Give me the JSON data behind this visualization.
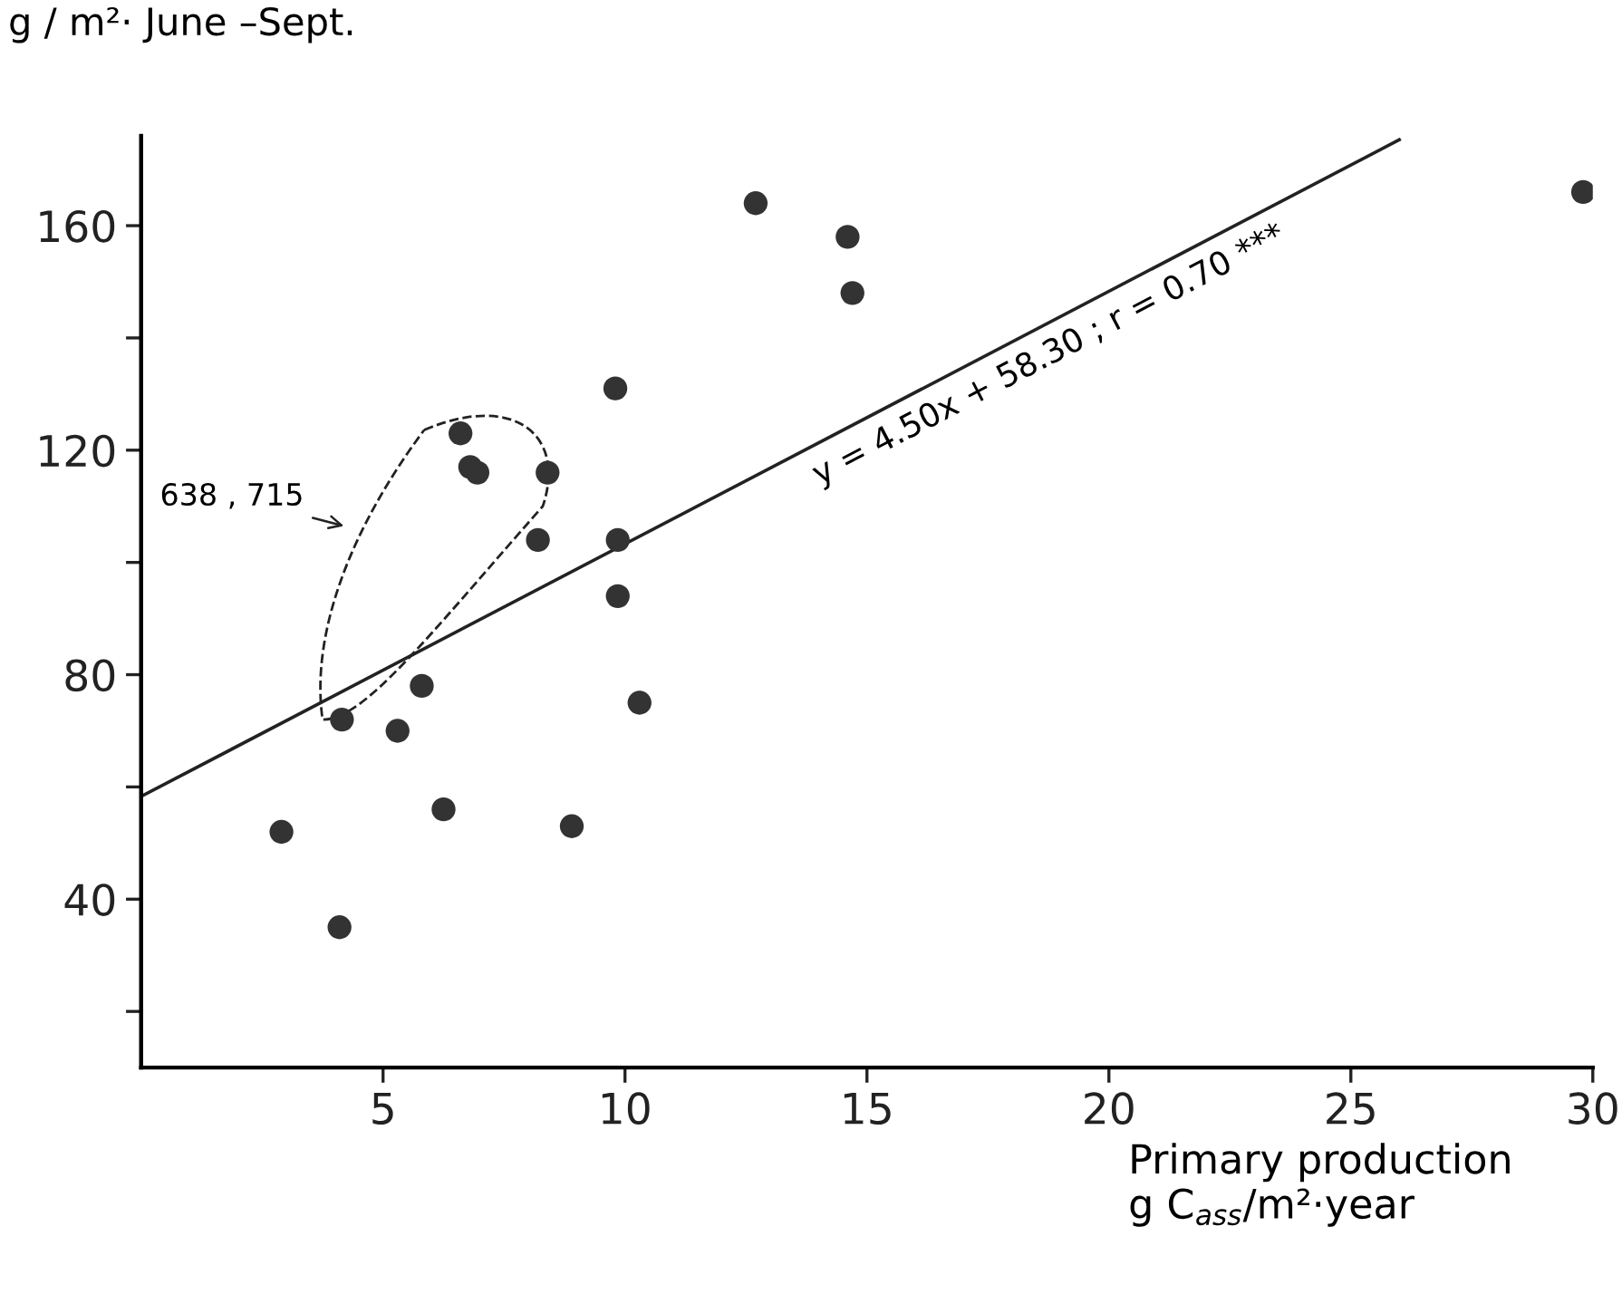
{
  "chart_data": {
    "type": "scatter",
    "ylabel": "g / m²· June –Sept.",
    "xlabel": "Primary production\ng C$_{ass}$/m²·year",
    "xlim": [
      0,
      30
    ],
    "xticks": [
      5,
      10,
      15,
      20,
      25,
      30
    ],
    "ylim": [
      10,
      176
    ],
    "yticks": [
      {
        "value": 20,
        "label": null
      },
      40,
      {
        "value": 60,
        "label": null
      },
      80,
      {
        "value": 100,
        "label": null
      },
      120,
      {
        "value": 140,
        "label": null
      },
      160
    ],
    "grid": false,
    "legend": false,
    "marker": "circle",
    "series": [
      {
        "color": "#333333",
        "x": [
          12.7,
          9.8,
          6.6,
          6.8,
          6.95,
          8.4,
          8.2,
          9.85,
          9.85,
          5.8,
          4.15,
          5.3,
          10.3,
          2.9,
          6.25,
          8.9,
          4.1,
          14.6,
          14.7,
          29.8
        ],
        "values": [
          164,
          131,
          123,
          117,
          116,
          116,
          104,
          104,
          94,
          78,
          72,
          70,
          75,
          52,
          56,
          53,
          35,
          158,
          148,
          166
        ]
      },
      {
        "type": "line",
        "color": "#222222",
        "line_style": "solid",
        "marker": "none",
        "x": [
          0,
          26
        ],
        "values": [
          58.3,
          175.3
        ]
      }
    ],
    "annotations": [
      {
        "text": "y = 4.50x + 58.30 ; r = 0.70 ***",
        "x": 18.3,
        "y": 140.7
      },
      "638 , 715"
    ]
  }
}
